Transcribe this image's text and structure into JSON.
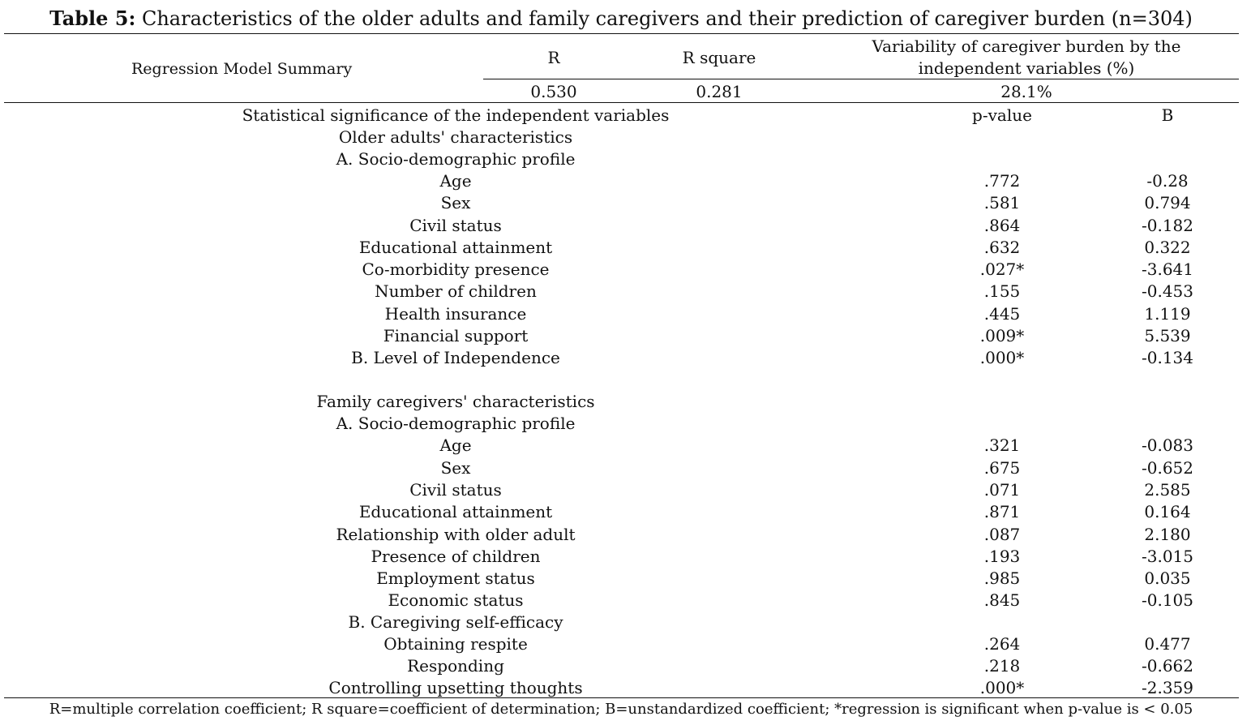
{
  "title": {
    "label": "Table 5:",
    "text": "Characteristics of the older adults and family caregivers and their prediction of caregiver burden (n=304)"
  },
  "summary": {
    "row_label": "Regression Model Summary",
    "headers": {
      "r": "R",
      "r_square": "R square",
      "variability_line1": "Variability of caregiver burden by the",
      "variability_line2": "independent variables (%)"
    },
    "values": {
      "r": "0.530",
      "r_square": "0.281",
      "variability": "28.1%"
    }
  },
  "significance": {
    "heading": "Statistical significance of the independent variables",
    "col_p": "p-value",
    "col_b": "B"
  },
  "older_adults": {
    "heading": "Older adults' characteristics",
    "section_a": "A. Socio-demographic profile",
    "rows": [
      {
        "label": "Age",
        "p": ".772",
        "b": "-0.28"
      },
      {
        "label": "Sex",
        "p": ".581",
        "b": "0.794"
      },
      {
        "label": "Civil status",
        "p": ".864",
        "b": "-0.182"
      },
      {
        "label": "Educational attainment",
        "p": ".632",
        "b": "0.322"
      },
      {
        "label": "Co-morbidity presence",
        "p": ".027*",
        "b": "-3.641"
      },
      {
        "label": "Number of children",
        "p": ".155",
        "b": "-0.453"
      },
      {
        "label": "Health insurance",
        "p": ".445",
        "b": "1.119"
      },
      {
        "label": "Financial support",
        "p": ".009*",
        "b": "5.539"
      }
    ],
    "section_b": {
      "label": "B. Level of Independence",
      "p": ".000*",
      "b": "-0.134"
    }
  },
  "caregivers": {
    "heading": "Family caregivers' characteristics",
    "section_a": "A. Socio-demographic profile",
    "rows_a": [
      {
        "label": "Age",
        "p": ".321",
        "b": "-0.083"
      },
      {
        "label": "Sex",
        "p": ".675",
        "b": "-0.652"
      },
      {
        "label": "Civil status",
        "p": ".071",
        "b": "2.585"
      },
      {
        "label": "Educational attainment",
        "p": ".871",
        "b": "0.164"
      },
      {
        "label": "Relationship with older adult",
        "p": ".087",
        "b": "2.180"
      },
      {
        "label": "Presence of children",
        "p": ".193",
        "b": "-3.015"
      },
      {
        "label": "Employment status",
        "p": ".985",
        "b": "0.035"
      },
      {
        "label": "Economic status",
        "p": ".845",
        "b": "-0.105"
      }
    ],
    "section_b": "B. Caregiving self-efficacy",
    "rows_b": [
      {
        "label": "Obtaining respite",
        "p": ".264",
        "b": "0.477"
      },
      {
        "label": "Responding",
        "p": ".218",
        "b": "-0.662"
      },
      {
        "label": "Controlling upsetting thoughts",
        "p": ".000*",
        "b": "-2.359"
      }
    ]
  },
  "footnote": "R=multiple correlation coefficient; R square=coefficient of determination; B=unstandardized coefficient; *regression is significant when p-value is < 0.05"
}
